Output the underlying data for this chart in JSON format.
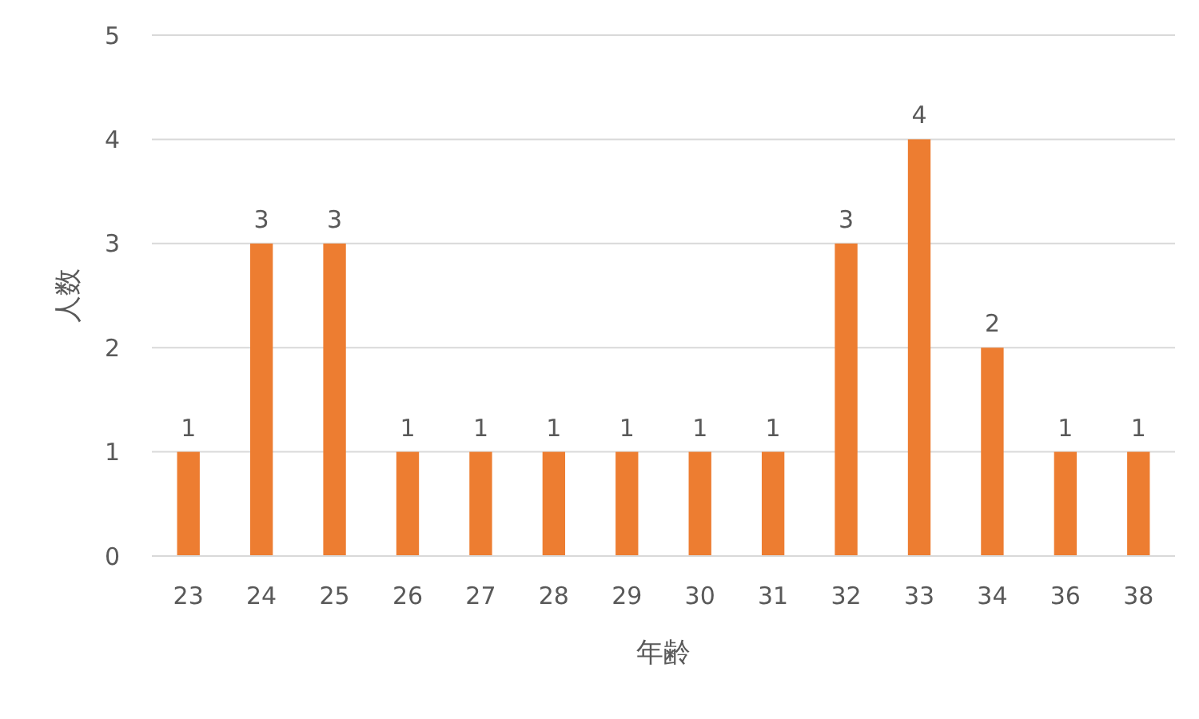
{
  "chart_data": {
    "type": "bar",
    "xlabel": "年齢",
    "ylabel": "人数",
    "categories": [
      "23",
      "24",
      "25",
      "26",
      "27",
      "28",
      "29",
      "30",
      "31",
      "32",
      "33",
      "34",
      "36",
      "38"
    ],
    "values": [
      1,
      3,
      3,
      1,
      1,
      1,
      1,
      1,
      1,
      3,
      4,
      2,
      1,
      1
    ],
    "color": "#ed7d31",
    "ylim": [
      0,
      5
    ],
    "yticks": [
      0,
      1,
      2,
      3,
      4,
      5
    ],
    "grid": "y",
    "data_labels": true
  }
}
